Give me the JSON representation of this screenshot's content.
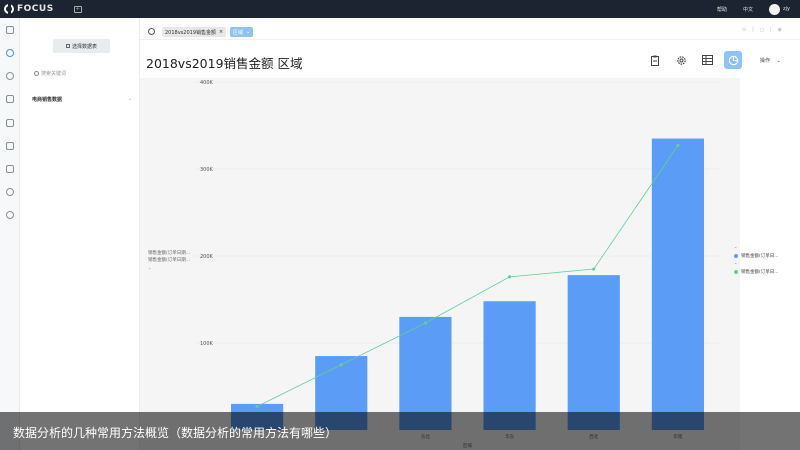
{
  "app": {
    "logo_text": "FOCUS",
    "tab_box": "+"
  },
  "topbar": {
    "help": "帮助",
    "lang": "中文",
    "user": "zjy"
  },
  "panel": {
    "select_button": "选择数据表",
    "search_placeholder": "搜索关键词",
    "tree_item": "电商销售数据",
    "tree_chevron": "⌄"
  },
  "searchbar": {
    "token_a": "2018vs2019销售金额",
    "token_a_close": "×",
    "token_b": "区域",
    "token_b_caret": "⌄",
    "right_icons": [
      "⊙",
      "|",
      "◻",
      "|",
      "◉"
    ]
  },
  "title": "2018vs2019销售金额 区域",
  "toolbar": {
    "icons": [
      "clipboard-icon",
      "gear-icon",
      "table-icon",
      "pie-chart-icon"
    ],
    "ops_label": "操作",
    "ops_caret": "⌄"
  },
  "legend_left": {
    "items": [
      "销售金额(订单日期...",
      "销售金额(订单日期..."
    ],
    "caret": "⌄"
  },
  "legend_right": {
    "series_a": "销售金额(订单日...",
    "series_b": "销售金额(订单日...",
    "caret": "⌄"
  },
  "colors": {
    "bar": "#5b9cf6",
    "line": "#5fcf97",
    "accent": "#8ec3f2"
  },
  "chart_data": {
    "type": "bar",
    "categories": [
      "",
      "",
      "东北",
      "华东",
      "西北",
      "华南"
    ],
    "yticks": [
      "100K",
      "200K",
      "300K",
      "400K"
    ],
    "ylim": [
      0,
      400000
    ],
    "xlabel": "区域",
    "series": [
      {
        "name": "销售金额(订单日...",
        "type": "bar",
        "values": [
          30000,
          85000,
          130000,
          148000,
          178000,
          335000
        ]
      },
      {
        "name": "销售金额(订单日...",
        "type": "line",
        "values": [
          27000,
          75000,
          123000,
          176000,
          185000,
          327000
        ]
      }
    ]
  },
  "caption": "数据分析的几种常用方法概览（数据分析的常用方法有哪些）"
}
